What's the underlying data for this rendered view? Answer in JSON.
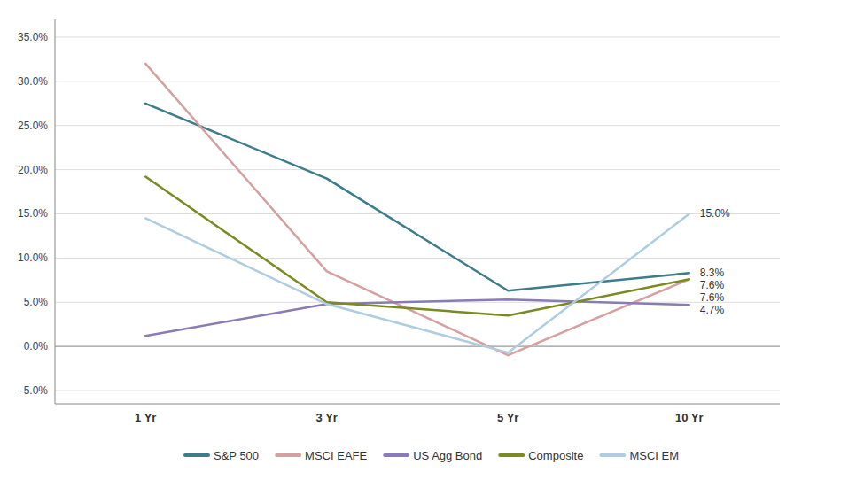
{
  "chart_data": {
    "type": "line",
    "categories": [
      "1 Yr",
      "3 Yr",
      "5 Yr",
      "10 Yr"
    ],
    "series": [
      {
        "name": "S&P 500",
        "color": "#3d7d8a",
        "values": [
          27.5,
          19.0,
          6.3,
          8.3
        ]
      },
      {
        "name": "MSCI EAFE",
        "color": "#d4a0a0",
        "values": [
          32.0,
          8.5,
          -1.0,
          7.6
        ]
      },
      {
        "name": "US Agg Bond",
        "color": "#8b7bb5",
        "values": [
          1.2,
          4.8,
          5.3,
          4.7
        ]
      },
      {
        "name": "Composite",
        "color": "#7a8a20",
        "values": [
          19.2,
          5.0,
          3.5,
          7.6
        ]
      },
      {
        "name": "MSCI EM",
        "color": "#aecde0",
        "values": [
          14.5,
          4.8,
          -0.7,
          15.0
        ]
      }
    ],
    "ylim": [
      -6.5,
      37.0
    ],
    "yticks": [
      {
        "value": -5.0,
        "label": "-5.0%"
      },
      {
        "value": 0.0,
        "label": "0.0%"
      },
      {
        "value": 5.0,
        "label": "5.0%"
      },
      {
        "value": 10.0,
        "label": "10.0%"
      },
      {
        "value": 15.0,
        "label": "15.0%"
      },
      {
        "value": 20.0,
        "label": "20.0%"
      },
      {
        "value": 25.0,
        "label": "25.0%"
      },
      {
        "value": 30.0,
        "label": "30.0%"
      },
      {
        "value": 35.0,
        "label": "35.0%"
      }
    ],
    "annotations": [
      {
        "text": "15.0%",
        "value": 15.0
      },
      {
        "text": "8.3%",
        "value": 8.3
      },
      {
        "text": "7.6%",
        "value": 7.6
      },
      {
        "text": "7.6%",
        "value": 7.6
      },
      {
        "text": "4.7%",
        "value": 4.7
      }
    ],
    "grid": true,
    "legend": "bottom"
  }
}
